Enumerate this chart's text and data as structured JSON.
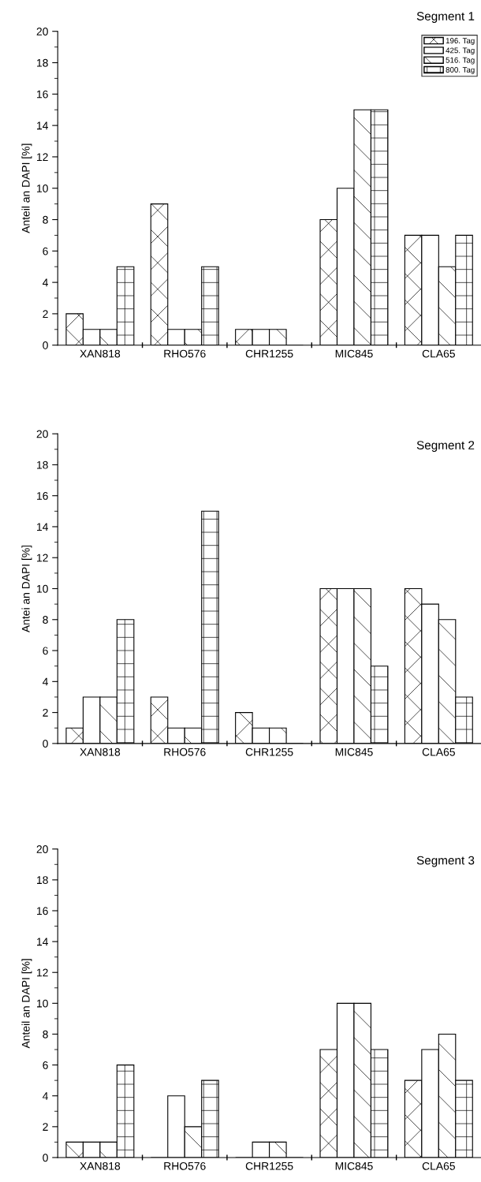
{
  "chart_data": [
    {
      "type": "bar",
      "title": "Segment 1",
      "ylabel": "Anteil an DAPI [%]",
      "categories": [
        "XAN818",
        "RHO576",
        "CHR1255",
        "MIC845",
        "CLA65"
      ],
      "ylim": [
        0,
        20
      ],
      "yticks": [
        0,
        2,
        4,
        6,
        8,
        10,
        12,
        14,
        16,
        18,
        20
      ],
      "legend": "top right",
      "series": [
        {
          "name": "196. Tag",
          "color": "#ffffff",
          "values": [
            2,
            9,
            1,
            8,
            7
          ]
        },
        {
          "name": "425. Tag",
          "color": "#ffffff",
          "values": [
            1,
            1,
            1,
            10,
            7
          ]
        },
        {
          "name": "516. Tag",
          "color": "#ffffff",
          "values": [
            1,
            1,
            1,
            15,
            5
          ]
        },
        {
          "name": "800. Tag",
          "color": "#ffffff",
          "values": [
            5,
            5,
            0,
            15,
            7
          ]
        }
      ]
    },
    {
      "type": "bar",
      "title": "Segment 2",
      "ylabel": "Antei an DAPI [%]",
      "categories": [
        "XAN818",
        "RHO576",
        "CHR1255",
        "MIC845",
        "CLA65"
      ],
      "ylim": [
        0,
        20
      ],
      "yticks": [
        0,
        2,
        4,
        6,
        8,
        10,
        12,
        14,
        16,
        18,
        20
      ],
      "series": [
        {
          "color": "#ffffff",
          "values": [
            1,
            3,
            2,
            10,
            10
          ]
        },
        {
          "color": "#ffffff",
          "values": [
            3,
            1,
            1,
            10,
            9
          ]
        },
        {
          "color": "#ffffff",
          "values": [
            3,
            1,
            1,
            10,
            8
          ]
        },
        {
          "color": "#ffffff",
          "values": [
            8,
            15,
            0,
            5,
            3
          ]
        }
      ]
    },
    {
      "type": "bar",
      "title": "Segment 3",
      "ylabel": "Anteil an DAPI [%]",
      "categories": [
        "XAN818",
        "RHO576",
        "CHR1255",
        "MIC845",
        "CLA65"
      ],
      "ylim": [
        0,
        20
      ],
      "yticks": [
        0,
        2,
        4,
        6,
        8,
        10,
        12,
        14,
        16,
        18,
        20
      ],
      "series": [
        {
          "color": "#ffffff",
          "values": [
            1,
            0,
            0,
            7,
            5
          ]
        },
        {
          "color": "#ffffff",
          "values": [
            1,
            4,
            1,
            10,
            7
          ]
        },
        {
          "color": "#ffffff",
          "values": [
            1,
            2,
            1,
            10,
            8
          ]
        },
        {
          "color": "#ffffff",
          "values": [
            6,
            5,
            0,
            7,
            5
          ]
        }
      ]
    }
  ]
}
